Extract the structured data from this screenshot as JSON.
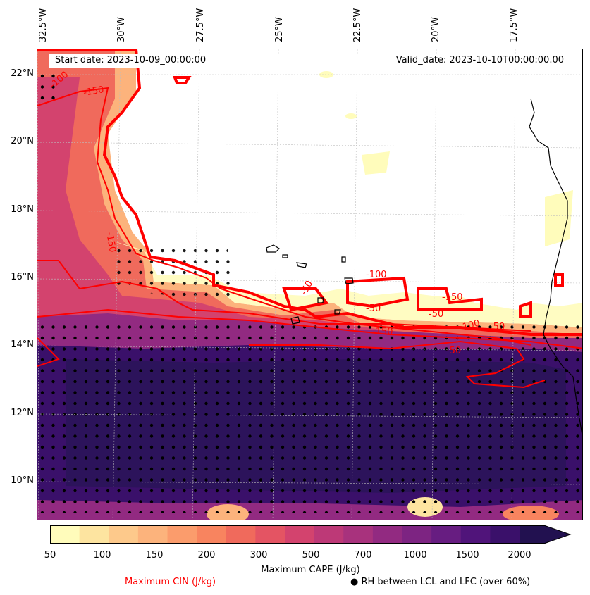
{
  "header": {
    "start_date": "Start date: 2023-10-09_00:00:00",
    "valid_date": "Valid_date: 2023-10-10T00:00:00.00"
  },
  "axes": {
    "longitude_labels": [
      "32.5°W",
      "30°W",
      "27.5°W",
      "25°W",
      "22.5°W",
      "20°W",
      "17.5°W"
    ],
    "latitude_labels": [
      "22°N",
      "20°N",
      "18°N",
      "16°N",
      "14°N",
      "12°N",
      "10°N"
    ]
  },
  "cin_contour_labels": [
    "-150",
    "-100",
    "-150",
    "-50",
    "-100",
    "-50",
    "-150",
    "-50",
    "-150",
    "-50",
    "-100",
    "-50"
  ],
  "colorbar": {
    "ticks": [
      "50",
      "100",
      "150",
      "200",
      "300",
      "500",
      "700",
      "1000",
      "1500",
      "2000"
    ],
    "colors": [
      "#fffcbb",
      "#fde4a0",
      "#fdc98b",
      "#fcb37c",
      "#fb9c6c",
      "#f8845f",
      "#f06a5c",
      "#e45463",
      "#d3436e",
      "#bd3977",
      "#a8327d",
      "#922a81",
      "#7d2482",
      "#671d81",
      "#50147a",
      "#3a106a",
      "#221150"
    ],
    "extend": "max"
  },
  "legend": {
    "cape_label": "Maximum CAPE (J/kg)",
    "cin_label": "Maximum CIN (J/kg)",
    "rh_label": "● RH between LCL and LFC (over 60%)"
  },
  "colors": {
    "cin_contour": "#ff0000",
    "deep_cape": "#2a1458",
    "coastline": "#000000"
  }
}
